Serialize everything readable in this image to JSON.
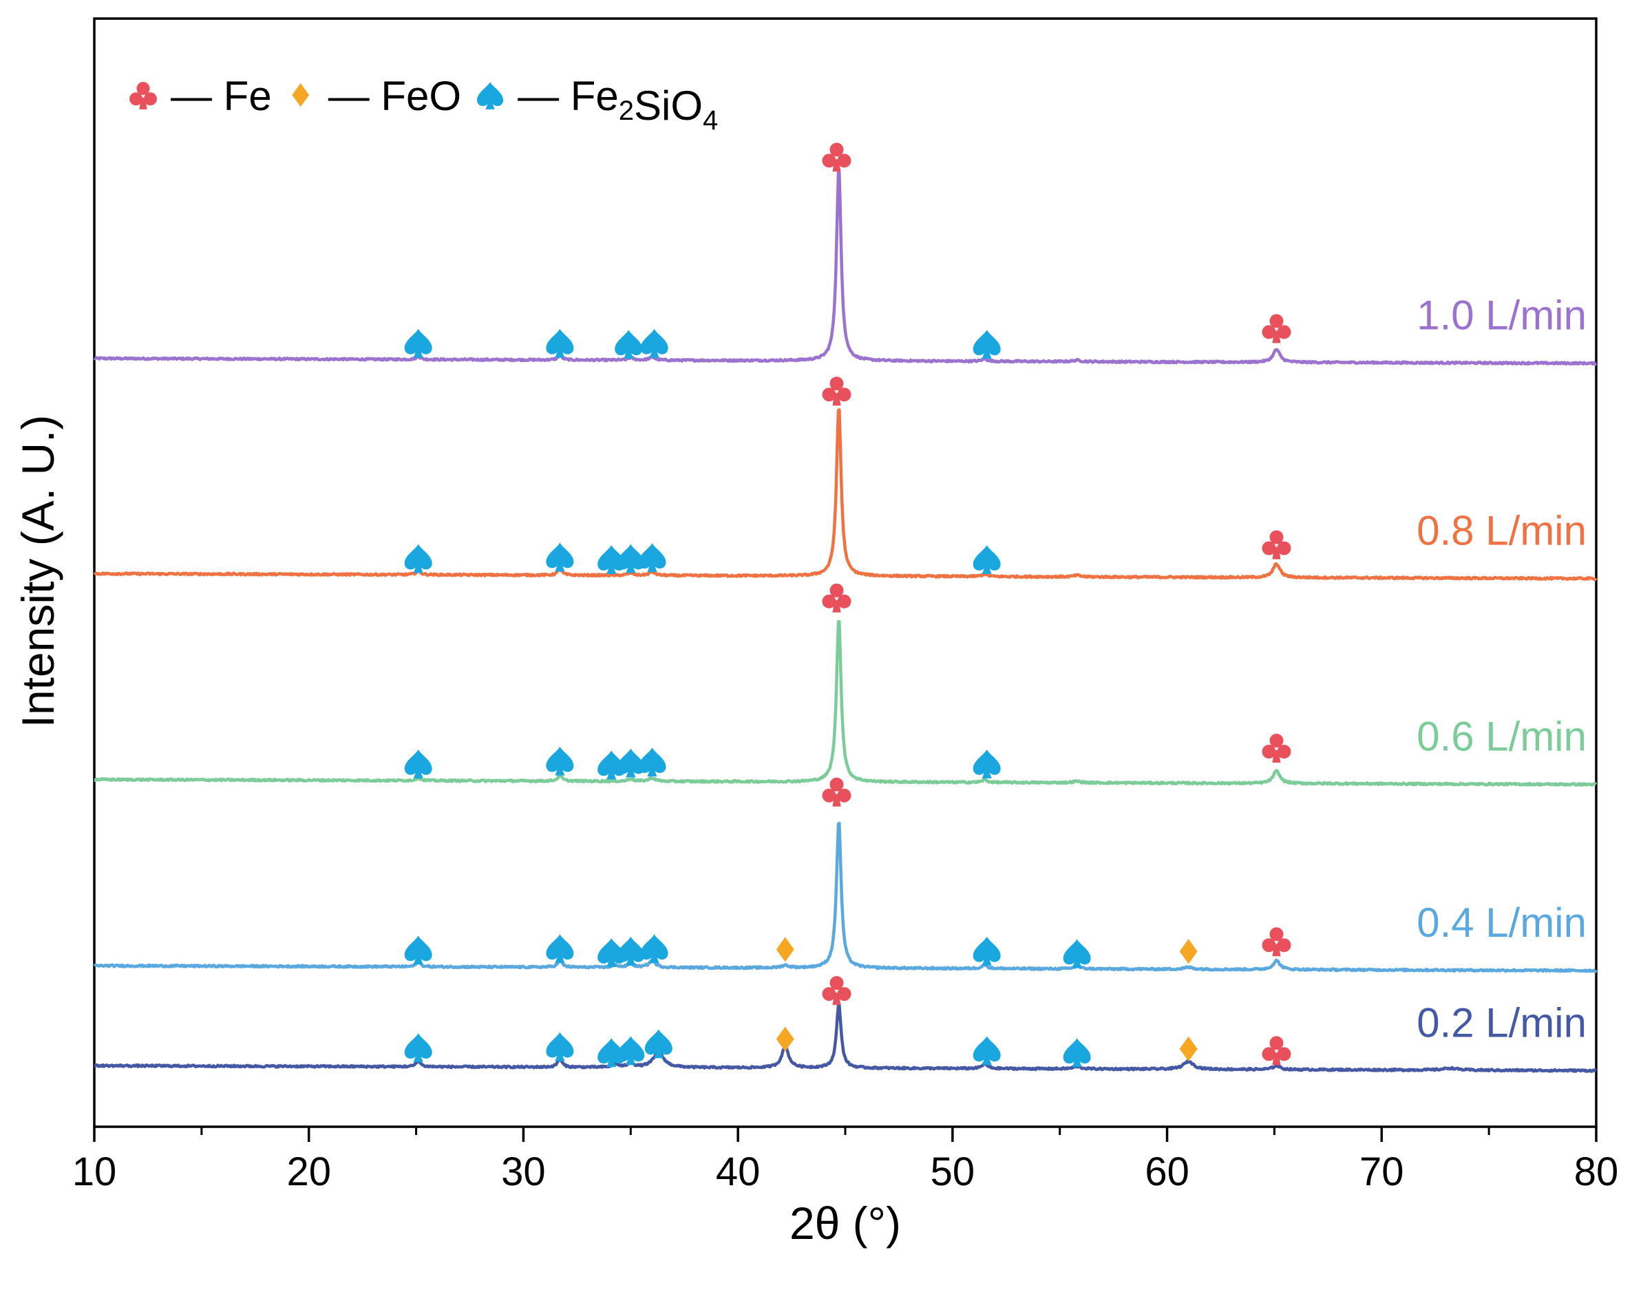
{
  "chart_data": {
    "type": "line",
    "title": "",
    "xlabel": "2θ (°)",
    "ylabel": "Intensity (A. U.)",
    "xlim": [
      10,
      80
    ],
    "xticks": [
      10,
      20,
      30,
      40,
      50,
      60,
      70,
      80
    ],
    "yticks": [],
    "legend": {
      "placement": "top-left",
      "entries": [
        {
          "marker": "club",
          "dash": "—",
          "label": "Fe",
          "sub": "",
          "label_tail": "",
          "sub2": "",
          "color": "#e8505b"
        },
        {
          "marker": "diamond",
          "dash": "—",
          "label": "FeO",
          "sub": "",
          "label_tail": "",
          "sub2": "",
          "color": "#f5a623"
        },
        {
          "marker": "spade",
          "dash": "—",
          "label": "Fe",
          "sub": "2",
          "label_tail": "SiO",
          "sub2": "4",
          "color": "#1aa7e0"
        }
      ]
    },
    "series": [
      {
        "name": "1.0 L/min",
        "color": "#9b72cf",
        "offset": 5.1,
        "scale": 1.0,
        "slope": -0.1,
        "peaks": [
          [
            25.1,
            0.06,
            0.25
          ],
          [
            31.7,
            0.09,
            0.25
          ],
          [
            35.0,
            0.05,
            0.3
          ],
          [
            36.0,
            0.06,
            0.35
          ],
          [
            44.7,
            3.9,
            0.26
          ],
          [
            51.5,
            0.05,
            0.3
          ],
          [
            55.8,
            0.03,
            0.4
          ],
          [
            65.1,
            0.26,
            0.38
          ]
        ],
        "markers": [
          {
            "type": "spade",
            "x": 25.1,
            "y": 5.42
          },
          {
            "type": "spade",
            "x": 31.7,
            "y": 5.42
          },
          {
            "type": "spade",
            "x": 34.9,
            "y": 5.4
          },
          {
            "type": "spade",
            "x": 36.1,
            "y": 5.42
          },
          {
            "type": "club",
            "x": 44.6,
            "y": 9.2
          },
          {
            "type": "spade",
            "x": 51.6,
            "y": 5.4
          },
          {
            "type": "club",
            "x": 65.1,
            "y": 5.72
          }
        ]
      },
      {
        "name": "0.8 L/min",
        "color": "#f07242",
        "offset": 0.73,
        "scale": 1.0,
        "slope": -0.1,
        "peaks": [
          [
            25.1,
            0.08,
            0.25
          ],
          [
            31.7,
            0.12,
            0.25
          ],
          [
            35.0,
            0.05,
            0.3
          ],
          [
            36.0,
            0.07,
            0.35
          ],
          [
            44.7,
            3.45,
            0.26
          ],
          [
            51.5,
            0.05,
            0.3
          ],
          [
            55.8,
            0.03,
            0.4
          ],
          [
            65.1,
            0.28,
            0.38
          ]
        ],
        "markers": [
          {
            "type": "spade",
            "x": 25.1,
            "y": 1.05
          },
          {
            "type": "spade",
            "x": 31.7,
            "y": 1.08
          },
          {
            "type": "spade",
            "x": 34.1,
            "y": 1.03
          },
          {
            "type": "spade",
            "x": 35.0,
            "y": 1.05
          },
          {
            "type": "spade",
            "x": 36.0,
            "y": 1.07
          },
          {
            "type": "club",
            "x": 44.6,
            "y": 4.45
          },
          {
            "type": "spade",
            "x": 51.6,
            "y": 1.03
          },
          {
            "type": "club",
            "x": 65.1,
            "y": 1.33
          }
        ]
      },
      {
        "name": "0.6 L/min",
        "color": "#7ccc9a",
        "offset": -3.45,
        "scale": 1.0,
        "slope": -0.1,
        "peaks": [
          [
            25.1,
            0.06,
            0.25
          ],
          [
            31.7,
            0.11,
            0.25
          ],
          [
            35.0,
            0.05,
            0.3
          ],
          [
            36.0,
            0.07,
            0.35
          ],
          [
            44.7,
            3.33,
            0.26
          ],
          [
            51.5,
            0.05,
            0.3
          ],
          [
            55.8,
            0.03,
            0.4
          ],
          [
            65.1,
            0.25,
            0.38
          ]
        ],
        "markers": [
          {
            "type": "spade",
            "x": 25.1,
            "y": -3.12
          },
          {
            "type": "spade",
            "x": 31.7,
            "y": -3.06
          },
          {
            "type": "spade",
            "x": 34.1,
            "y": -3.14
          },
          {
            "type": "spade",
            "x": 35.0,
            "y": -3.1
          },
          {
            "type": "spade",
            "x": 36.0,
            "y": -3.08
          },
          {
            "type": "club",
            "x": 44.6,
            "y": 0.25
          },
          {
            "type": "spade",
            "x": 51.6,
            "y": -3.12
          },
          {
            "type": "club",
            "x": 65.1,
            "y": -2.8
          }
        ]
      },
      {
        "name": "0.4 L/min",
        "color": "#5aa8e0",
        "offset": -7.23,
        "scale": 1.0,
        "slope": -0.1,
        "peaks": [
          [
            25.1,
            0.1,
            0.25
          ],
          [
            31.7,
            0.15,
            0.25
          ],
          [
            34.3,
            0.05,
            0.3
          ],
          [
            35.0,
            0.08,
            0.3
          ],
          [
            36.0,
            0.13,
            0.4
          ],
          [
            42.2,
            0.05,
            0.4
          ],
          [
            44.7,
            3.0,
            0.26
          ],
          [
            51.5,
            0.08,
            0.3
          ],
          [
            55.8,
            0.05,
            0.4
          ],
          [
            61.0,
            0.04,
            0.5
          ],
          [
            65.1,
            0.18,
            0.38
          ]
        ],
        "markers": [
          {
            "type": "spade",
            "x": 25.1,
            "y": -6.9
          },
          {
            "type": "spade",
            "x": 31.7,
            "y": -6.87
          },
          {
            "type": "spade",
            "x": 34.1,
            "y": -6.95
          },
          {
            "type": "spade",
            "x": 35.0,
            "y": -6.92
          },
          {
            "type": "spade",
            "x": 36.1,
            "y": -6.87
          },
          {
            "type": "diamond",
            "x": 42.2,
            "y": -6.9
          },
          {
            "type": "club",
            "x": 44.6,
            "y": -3.69
          },
          {
            "type": "spade",
            "x": 51.6,
            "y": -6.92
          },
          {
            "type": "spade",
            "x": 55.8,
            "y": -6.97
          },
          {
            "type": "diamond",
            "x": 61.0,
            "y": -6.94
          },
          {
            "type": "club",
            "x": 65.1,
            "y": -6.73
          }
        ]
      },
      {
        "name": "0.2 L/min",
        "color": "#4558a6",
        "offset": -9.26,
        "scale": 1.0,
        "slope": -0.1,
        "peaks": [
          [
            25.1,
            0.12,
            0.25
          ],
          [
            31.7,
            0.17,
            0.25
          ],
          [
            34.3,
            0.07,
            0.3
          ],
          [
            35.0,
            0.1,
            0.3
          ],
          [
            36.3,
            0.3,
            0.6
          ],
          [
            42.2,
            0.42,
            0.4
          ],
          [
            44.7,
            1.3,
            0.26
          ],
          [
            51.5,
            0.1,
            0.3
          ],
          [
            55.8,
            0.05,
            0.4
          ],
          [
            61.0,
            0.16,
            0.55
          ],
          [
            65.1,
            0.08,
            0.38
          ],
          [
            73.2,
            0.04,
            0.8
          ]
        ],
        "markers": [
          {
            "type": "spade",
            "x": 25.1,
            "y": -8.88
          },
          {
            "type": "spade",
            "x": 31.7,
            "y": -8.86
          },
          {
            "type": "spade",
            "x": 34.1,
            "y": -8.98
          },
          {
            "type": "spade",
            "x": 35.0,
            "y": -8.94
          },
          {
            "type": "spade",
            "x": 36.3,
            "y": -8.8
          },
          {
            "type": "diamond",
            "x": 42.2,
            "y": -8.72
          },
          {
            "type": "club",
            "x": 44.6,
            "y": -7.72
          },
          {
            "type": "spade",
            "x": 51.6,
            "y": -8.94
          },
          {
            "type": "spade",
            "x": 55.8,
            "y": -8.98
          },
          {
            "type": "diamond",
            "x": 61.0,
            "y": -8.92
          },
          {
            "type": "club",
            "x": 65.1,
            "y": -8.94
          }
        ]
      }
    ]
  }
}
